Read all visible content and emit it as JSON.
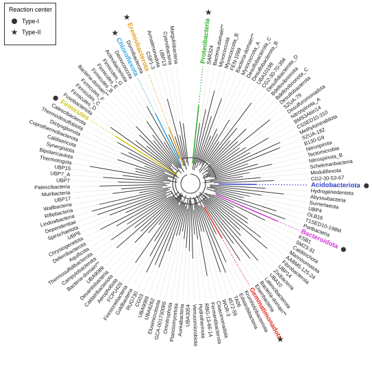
{
  "legend": {
    "title": "Reaction center",
    "items": [
      {
        "label": "Type-I",
        "symbol": "circle"
      },
      {
        "label": "Type-II",
        "symbol": "star"
      }
    ]
  },
  "colors": {
    "branch": "#3a3a3a",
    "dashed": "#bcbcbc",
    "Proteobacteria": "#2fb02f",
    "Chloroflexota": "#33aadd",
    "Eremiobacterota": "#e0a020",
    "Firmicutes": "#d4c21a",
    "Acidobacteriota": "#3040c8",
    "Bacteroidota": "#d23ad2",
    "Gemmatimonadota": "#e03020",
    "symbol": "#333333"
  },
  "taxa": [
    "Proteobacteria",
    "SAR324",
    "Bacteria-domain**",
    "Myxococcota",
    "Myxococcota_B",
    "FEN-1099",
    "Bacteria-domain**",
    "Myxococcota_A",
    "Desulfobacterota_C",
    "Desulfobacterota_B",
    "UBA10199",
    "CG2-30-70-394",
    "Desulfobacterota_D",
    "Bdellovibrionota",
    "Bdellovibrionota_C",
    "Desulfobacterota",
    "SZUA-79",
    "Desulfuromonadota",
    "Nitrospinota_A",
    "BMS3Abin14",
    "CSSED10-310",
    "Methylomirabilota",
    "SZUA-182",
    "B130-G9",
    "Nitrospirota",
    "Tectomicrobia",
    "Nitrospinota_B",
    "Schekmanbacteria",
    "Modulifiexota",
    "CG2-30-53-67",
    "Acidobacteriota",
    "Hydrogenedentota",
    "Abyssubacteria",
    "Sumerlaeota",
    "UBP4",
    "OLB16",
    "T1SED10-198M",
    "Poribacteria",
    "Bacteroidota",
    "KSB1",
    "SM23-31",
    "Calditrichota",
    "Marinisomatota",
    "AABM5-125-24",
    "Fibrobacterota",
    "UBP14",
    "Zixibacteria",
    "UBA10",
    "Latescibacterota",
    "Bacteria-domain**",
    "Eisenbacteria",
    "Gemmatimonadota",
    "Krumholzibacteriota",
    "Edwardsbacteria",
    "TA06",
    "4572-55",
    "WOR-3",
    "Cloacimonadota",
    "Fermentibacterota",
    "RBG-13-66-14",
    "Hydrothermota",
    "Verrucomicrobiota",
    "UBA3054",
    "Aureabacteria",
    "Planctomycetota",
    "Omnitrophota",
    "GCA-001730085",
    "Elusimicrobiota",
    "UBA6262",
    "UBA9089",
    "CG03",
    "RUG730",
    "Goldbacteria",
    "Firestonebacteria",
    "FCPU426",
    "Aerophobota",
    "Caldatribacteriota",
    "Desantisbacteria",
    "UBA9089",
    "Bacteria-domain**",
    "Campylobacterota",
    "Thermosulfidibacterota",
    "Aquificota",
    "Deferribacterota",
    "Chrysiogenetota",
    "UBP6",
    "Spirochaetota",
    "Dependentiae",
    "Lindowbacteria",
    "Riflebacteria",
    "Wallbacteria",
    "UBP17",
    "Muirbacteria",
    "Patescibacteria",
    "UBP7",
    "UBP7_A",
    "UBP15",
    "Thermotogota",
    "Bipolaricaulota",
    "Synergistota",
    "Caldisericota",
    "Coprothermobacterota",
    "Dictyoglomota",
    "Thermodesulfobiota",
    "Calescibacterota",
    "Firmicutes",
    "Fusobacteriota",
    "Firmicutes_D",
    "Firmicutes_C",
    "Firmicutes_F",
    "Bacteria-domain**",
    "Firmicutes_B",
    "Firmicutes_E",
    "Firmicutes_G",
    "Actinobacteriota",
    "Deinococcota",
    "Chloroflexota",
    "Dormibacterota",
    "Eremiobacterota",
    "CSP1-3",
    "Armatimonadota",
    "UBP13",
    "Cyanobacteria",
    "Margulisbacteria"
  ],
  "highlights": [
    {
      "label": "Proteobacteria",
      "color": "#2fb02f",
      "marker": "star"
    },
    {
      "label": "Chloroflexota",
      "color": "#33aadd",
      "marker": "star"
    },
    {
      "label": "Eremiobacterota",
      "color": "#e0a020",
      "marker": "star"
    },
    {
      "label": "Firmicutes",
      "color": "#d4c21a",
      "marker": "circle"
    },
    {
      "label": "Acidobacteriota",
      "color": "#3040c8",
      "marker": "circle"
    },
    {
      "label": "Bacteroidota",
      "color": "#d23ad2",
      "marker": "circle"
    },
    {
      "label": "Gemmatimonadota",
      "color": "#e03020",
      "marker": "star"
    }
  ]
}
